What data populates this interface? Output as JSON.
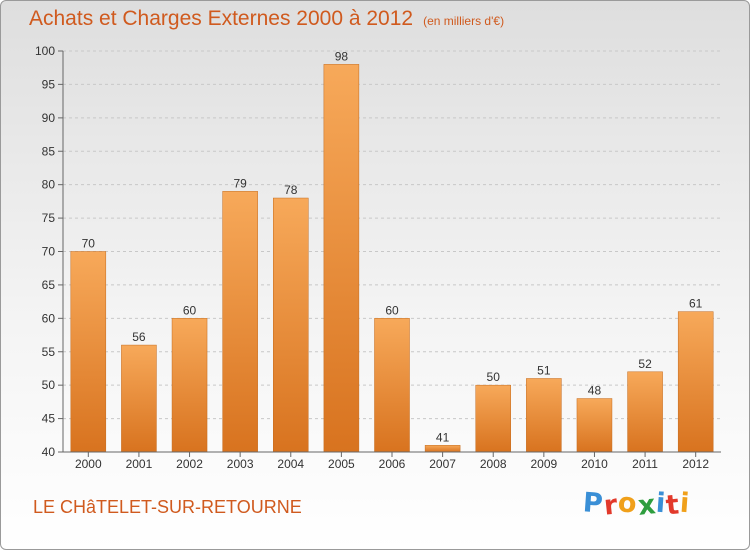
{
  "colors": {
    "accent": "#d05a1e",
    "bar_light": "#f7a95a",
    "bar_dark": "#d8731f",
    "grid": "#c8c8c8",
    "axis_text": "#333333"
  },
  "place": "LE CHâTELET-SUR-RETOURNE",
  "logo": {
    "text": "Proxiti",
    "letters": [
      {
        "char": "P",
        "color": "#3a8fd6"
      },
      {
        "char": "r",
        "color": "#e2392b"
      },
      {
        "char": "o",
        "color": "#f0a01a"
      },
      {
        "char": "x",
        "color": "#2e9d3e"
      },
      {
        "char": "i",
        "color": "#3a8fd6"
      },
      {
        "char": "t",
        "color": "#e2392b"
      },
      {
        "char": "i",
        "color": "#f0a01a"
      }
    ]
  },
  "chart_data": {
    "type": "bar",
    "title": "Achats et Charges Externes 2000 à 2012",
    "subtitle": "(en milliers d'€)",
    "xlabel": "",
    "ylabel": "",
    "categories": [
      "2000",
      "2001",
      "2002",
      "2003",
      "2004",
      "2005",
      "2006",
      "2007",
      "2008",
      "2009",
      "2010",
      "2011",
      "2012"
    ],
    "values": [
      70,
      56,
      60,
      79,
      78,
      98,
      60,
      41,
      50,
      51,
      48,
      52,
      61
    ],
    "ylim": [
      40,
      100
    ],
    "yticks": [
      40,
      45,
      50,
      55,
      60,
      65,
      70,
      75,
      80,
      85,
      90,
      95,
      100
    ],
    "grid": true,
    "data_labels": true
  }
}
